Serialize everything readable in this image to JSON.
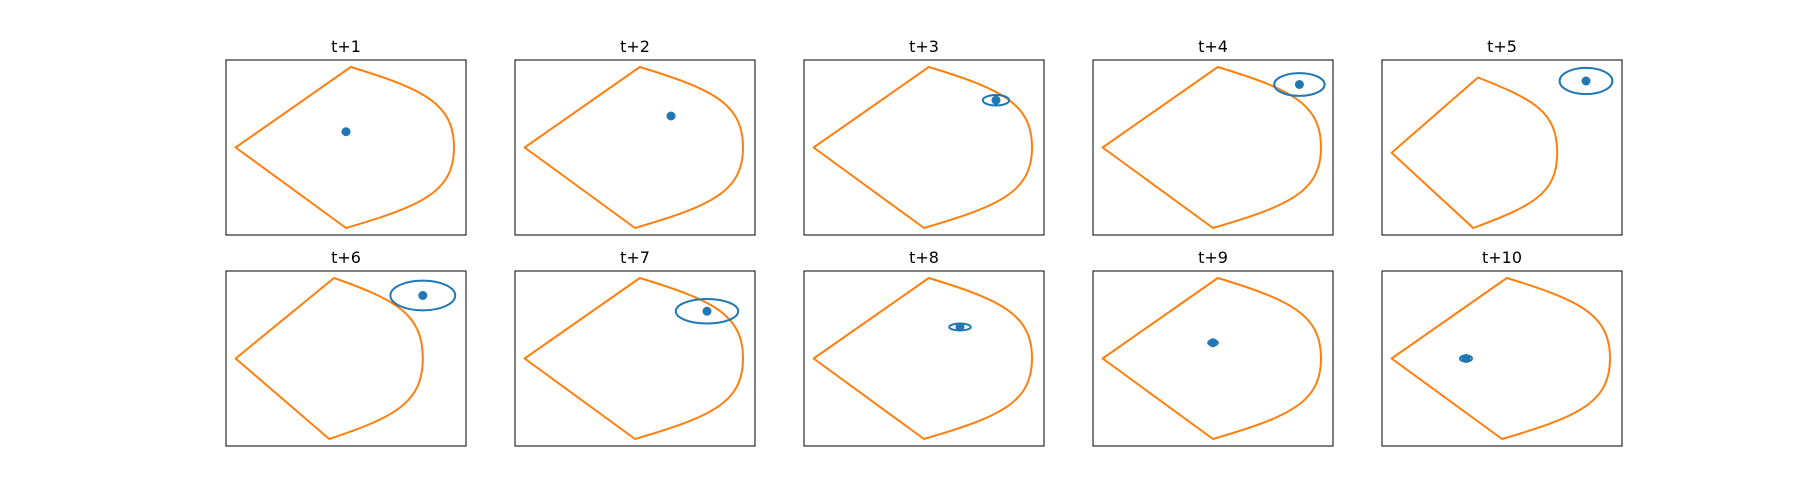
{
  "colors": {
    "region": "#ff7f0e",
    "point": "#1f77b4",
    "frame": "#000000"
  },
  "chart_data": [
    {
      "type": "scatter",
      "title": "t+1",
      "point": {
        "x": 0.5,
        "y": 0.41
      },
      "ellipse": {
        "rx": 0.015,
        "ry": 0.015
      },
      "region": {
        "left": [
          0.04,
          0.5
        ],
        "top": [
          0.52,
          0.04
        ],
        "bottom": [
          0.5,
          0.96
        ],
        "right_x": 0.95,
        "mid_y": 0.5
      }
    },
    {
      "type": "scatter",
      "title": "t+2",
      "point": {
        "x": 0.65,
        "y": 0.32
      },
      "ellipse": {
        "rx": 0.0,
        "ry": 0.0
      },
      "region": {
        "left": [
          0.04,
          0.5
        ],
        "top": [
          0.52,
          0.04
        ],
        "bottom": [
          0.5,
          0.96
        ],
        "right_x": 0.95,
        "mid_y": 0.5
      }
    },
    {
      "type": "scatter",
      "title": "t+3",
      "point": {
        "x": 0.8,
        "y": 0.23
      },
      "ellipse": {
        "rx": 0.055,
        "ry": 0.03
      },
      "region": {
        "left": [
          0.04,
          0.5
        ],
        "top": [
          0.52,
          0.04
        ],
        "bottom": [
          0.5,
          0.96
        ],
        "right_x": 0.95,
        "mid_y": 0.5
      }
    },
    {
      "type": "scatter",
      "title": "t+4",
      "point": {
        "x": 0.86,
        "y": 0.14
      },
      "ellipse": {
        "rx": 0.105,
        "ry": 0.065
      },
      "region": {
        "left": [
          0.04,
          0.5
        ],
        "top": [
          0.52,
          0.04
        ],
        "bottom": [
          0.5,
          0.96
        ],
        "right_x": 0.95,
        "mid_y": 0.5
      }
    },
    {
      "type": "scatter",
      "title": "t+5",
      "point": {
        "x": 0.85,
        "y": 0.12
      },
      "ellipse": {
        "rx": 0.11,
        "ry": 0.075
      },
      "region": {
        "left": [
          0.04,
          0.53
        ],
        "top": [
          0.4,
          0.1
        ],
        "bottom": [
          0.38,
          0.96
        ],
        "right_x": 0.73,
        "mid_y": 0.53
      }
    },
    {
      "type": "scatter",
      "title": "t+6",
      "point": {
        "x": 0.82,
        "y": 0.14
      },
      "ellipse": {
        "rx": 0.135,
        "ry": 0.085
      },
      "region": {
        "left": [
          0.04,
          0.5
        ],
        "top": [
          0.45,
          0.04
        ],
        "bottom": [
          0.43,
          0.96
        ],
        "right_x": 0.82,
        "mid_y": 0.5
      }
    },
    {
      "type": "scatter",
      "title": "t+7",
      "point": {
        "x": 0.8,
        "y": 0.23
      },
      "ellipse": {
        "rx": 0.13,
        "ry": 0.07
      },
      "region": {
        "left": [
          0.04,
          0.5
        ],
        "top": [
          0.52,
          0.04
        ],
        "bottom": [
          0.5,
          0.96
        ],
        "right_x": 0.95,
        "mid_y": 0.5
      }
    },
    {
      "type": "scatter",
      "title": "t+8",
      "point": {
        "x": 0.65,
        "y": 0.32
      },
      "ellipse": {
        "rx": 0.045,
        "ry": 0.02
      },
      "region": {
        "left": [
          0.04,
          0.5
        ],
        "top": [
          0.52,
          0.04
        ],
        "bottom": [
          0.5,
          0.96
        ],
        "right_x": 0.95,
        "mid_y": 0.5
      }
    },
    {
      "type": "scatter",
      "title": "t+9",
      "point": {
        "x": 0.5,
        "y": 0.41
      },
      "ellipse": {
        "rx": 0.02,
        "ry": 0.015
      },
      "region": {
        "left": [
          0.04,
          0.5
        ],
        "top": [
          0.52,
          0.04
        ],
        "bottom": [
          0.5,
          0.96
        ],
        "right_x": 0.95,
        "mid_y": 0.5
      }
    },
    {
      "type": "scatter",
      "title": "t+10",
      "point": {
        "x": 0.35,
        "y": 0.5
      },
      "ellipse": {
        "rx": 0.025,
        "ry": 0.018
      },
      "region": {
        "left": [
          0.04,
          0.5
        ],
        "top": [
          0.52,
          0.04
        ],
        "bottom": [
          0.5,
          0.96
        ],
        "right_x": 0.95,
        "mid_y": 0.5
      }
    }
  ]
}
